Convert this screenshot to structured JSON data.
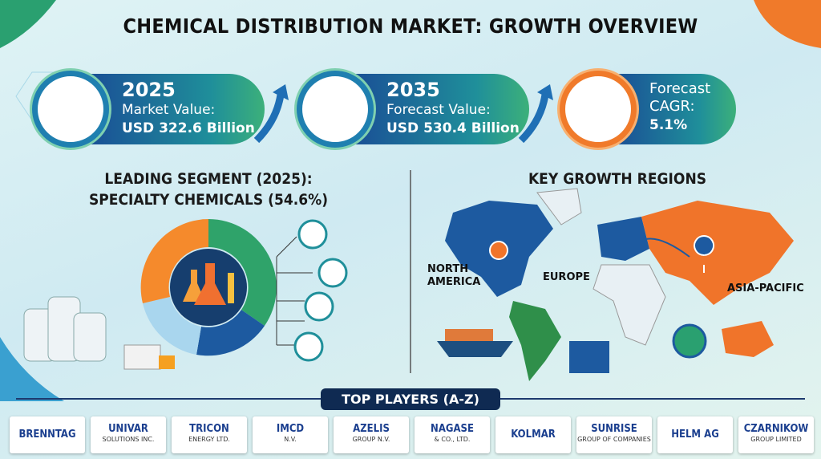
{
  "title": "CHEMICAL DISTRIBUTION MARKET: GROWTH OVERVIEW",
  "stats": [
    {
      "year": "2025",
      "label": "Market Value:",
      "value": "USD 322.6 Billion"
    },
    {
      "year": "2035",
      "label": "Forecast Value:",
      "value": "USD 530.4 Billion"
    },
    {
      "label": "Forecast CAGR:",
      "value": "5.1%"
    }
  ],
  "segment": {
    "heading": "LEADING SEGMENT (2025):",
    "name": "SPECIALTY CHEMICALS (54.6%)"
  },
  "regions": {
    "title": "KEY GROWTH REGIONS",
    "labels": [
      "NORTH AMERICA",
      "EUROPE",
      "ASIA-PACIFIC"
    ]
  },
  "players": {
    "title": "TOP PLAYERS (A-Z)",
    "logos": [
      {
        "name": "BRENNTAG"
      },
      {
        "name": "UNIVAR",
        "sub": "SOLUTIONS INC."
      },
      {
        "name": "TRICON",
        "sub": "ENERGY LTD."
      },
      {
        "name": "IMCD",
        "sub": "N.V."
      },
      {
        "name": "AZELIS",
        "sub": "GROUP N.V."
      },
      {
        "name": "NAGASE",
        "sub": "& CO., LTD."
      },
      {
        "name": "KOLMAR"
      },
      {
        "name": "SUNRISE",
        "sub": "GROUP OF COMPANIES"
      },
      {
        "name": "HELM AG"
      },
      {
        "name": "CZARNIKOW",
        "sub": "GROUP LIMITED"
      }
    ]
  }
}
